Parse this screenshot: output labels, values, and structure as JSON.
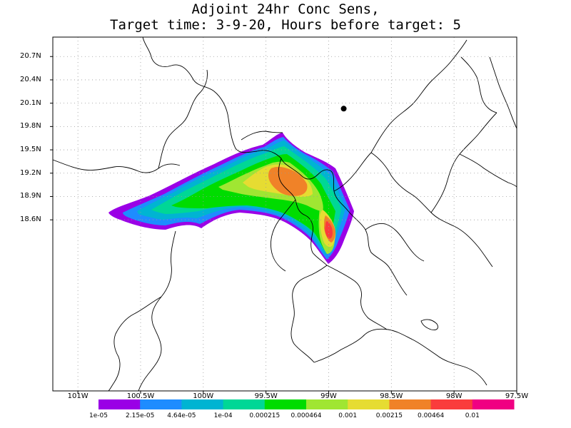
{
  "title": {
    "line1": "Adjoint 24hr Conc Sens,",
    "line2": "Target time: 3-9-20, Hours before target: 5"
  },
  "map": {
    "lon_range": [
      -101.2,
      -97.5
    ],
    "lat_range": [
      16.4,
      20.95
    ],
    "lat_ticks": [
      "20.7N",
      "20.4N",
      "20.1N",
      "19.8N",
      "19.5N",
      "19.2N",
      "18.9N",
      "18.6N"
    ],
    "lat_values": [
      20.7,
      20.4,
      20.1,
      19.8,
      19.5,
      19.2,
      18.9,
      18.6
    ],
    "lon_ticks": [
      "101W",
      "100.5W",
      "100W",
      "99.5W",
      "99W",
      "98.5W",
      "98W",
      "97.5W"
    ],
    "lon_values": [
      -101.0,
      -100.5,
      -100.0,
      -99.5,
      -99.0,
      -98.5,
      -98.0,
      -97.5
    ],
    "grid": "dotted",
    "marker": {
      "lon": -98.88,
      "lat": 20.03,
      "symbol": "filled-dot"
    }
  },
  "colorbar": {
    "labels": [
      "1e-05",
      "2.15e-05",
      "4.64e-05",
      "1e-04",
      "0.000215",
      "0.000464",
      "0.001",
      "0.00215",
      "0.00464",
      "0.01"
    ],
    "colors": [
      "#9a00e6",
      "#1e8cff",
      "#00b4d2",
      "#00d796",
      "#00dc00",
      "#a0e632",
      "#e6dc32",
      "#f08228",
      "#fa3c3c",
      "#f00082"
    ]
  }
}
